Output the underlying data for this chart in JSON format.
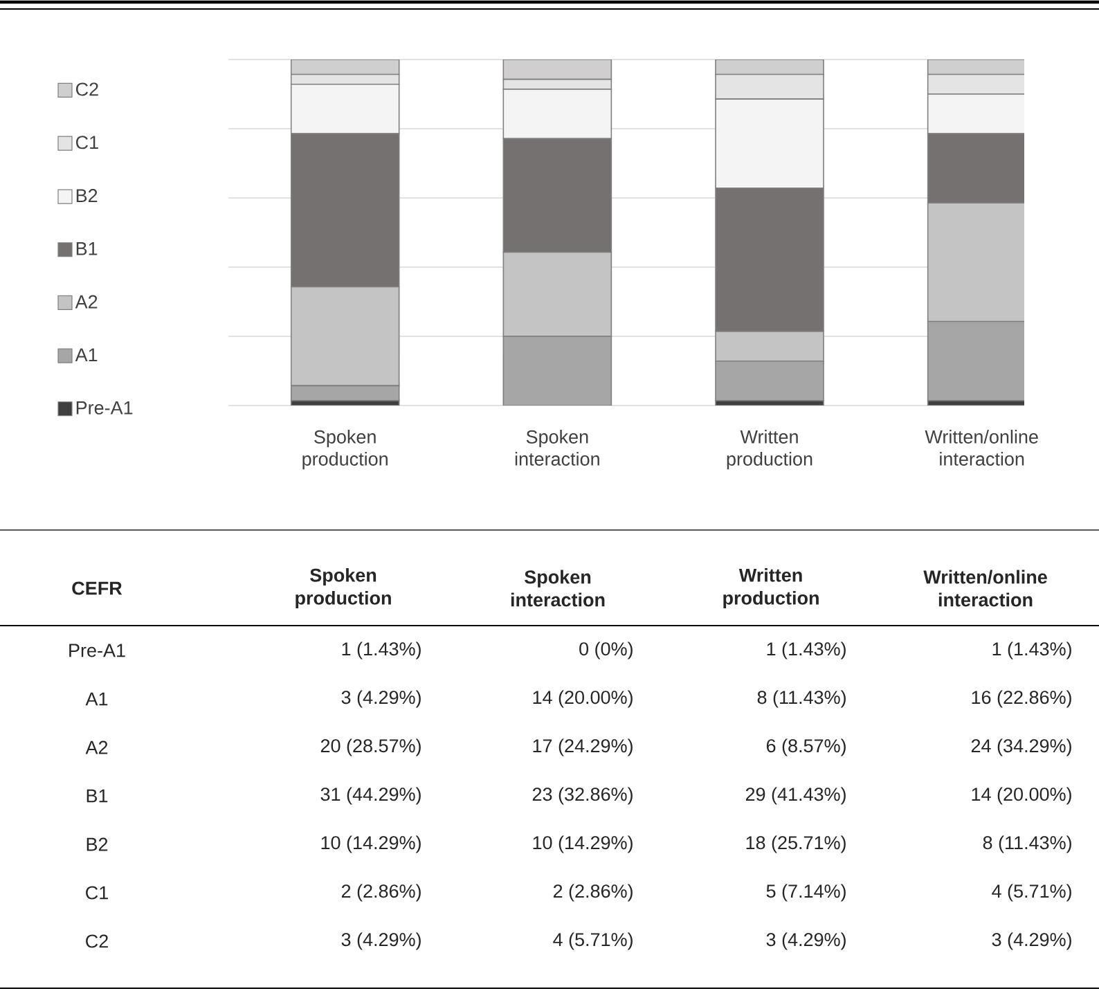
{
  "chart_data": {
    "type": "bar",
    "stacked": true,
    "categories": [
      "Spoken production",
      "Spoken interaction",
      "Written production",
      "Written/online interaction"
    ],
    "series": [
      {
        "name": "Pre-A1",
        "color": "#404040",
        "values": [
          1,
          0,
          1,
          1
        ],
        "value_labels": [
          "1 (1.43%)",
          "0 (0%)",
          "1 (1.43%)",
          "1 (1.43%)"
        ]
      },
      {
        "name": "A1",
        "color": "#a6a6a6",
        "values": [
          3,
          14,
          8,
          16
        ],
        "value_labels": [
          "3 (4.29%)",
          "14 (20.00%)",
          "8 (11.43%)",
          "16 (22.86%)"
        ]
      },
      {
        "name": "A2",
        "color": "#c4c4c4",
        "values": [
          20,
          17,
          6,
          24
        ],
        "value_labels": [
          "20 (28.57%)",
          "17 (24.29%)",
          "6 (8.57%)",
          "24 (34.29%)"
        ]
      },
      {
        "name": "B1",
        "color": "#767171",
        "values": [
          31,
          23,
          29,
          14
        ],
        "value_labels": [
          "31 (44.29%)",
          "23 (32.86%)",
          "29 (41.43%)",
          "14 (20.00%)"
        ]
      },
      {
        "name": "B2",
        "color": "#f4f4f4",
        "values": [
          10,
          10,
          18,
          8
        ],
        "value_labels": [
          "10 (14.29%)",
          "10 (14.29%)",
          "18 (25.71%)",
          "8 (11.43%)"
        ]
      },
      {
        "name": "C1",
        "color": "#e4e4e4",
        "values": [
          2,
          2,
          5,
          4
        ],
        "value_labels": [
          "2 (2.86%)",
          "2 (2.86%)",
          "5 (7.14%)",
          "4 (5.71%)"
        ]
      },
      {
        "name": "C2",
        "color": "#d0cece",
        "values": [
          3,
          4,
          3,
          3
        ],
        "value_labels": [
          "3 (4.29%)",
          "4 (5.71%)",
          "3 (4.29%)",
          "3 (4.29%)"
        ]
      }
    ],
    "ylim": [
      0,
      70
    ],
    "yticks": [
      {
        "value": 0,
        "label": null
      },
      {
        "value": 14,
        "label": null
      },
      {
        "value": 28,
        "label": null
      },
      {
        "value": 42,
        "label": null
      },
      {
        "value": 56,
        "label": null
      },
      {
        "value": 70,
        "label": null
      }
    ],
    "grid": "y",
    "legend": "left",
    "tick_labels": "x",
    "annotations": [
      "CEFR"
    ]
  }
}
